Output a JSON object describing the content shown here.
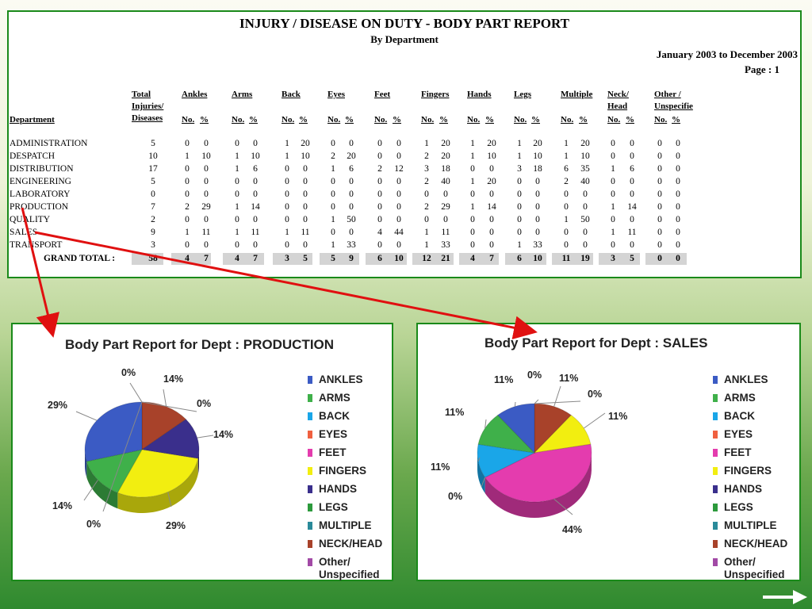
{
  "report": {
    "title": "INJURY / DISEASE ON DUTY - BODY PART REPORT",
    "subtitle": "By Department",
    "date_range": "January 2003 to December 2003",
    "page": "Page : 1",
    "dept_header": "Department",
    "total_header": [
      "Total",
      "Injuries/",
      "Diseases"
    ],
    "columns": [
      {
        "name": [
          "Ankles"
        ]
      },
      {
        "name": [
          "Arms"
        ]
      },
      {
        "name": [
          "Back"
        ]
      },
      {
        "name": [
          "Eyes"
        ]
      },
      {
        "name": [
          "Feet"
        ]
      },
      {
        "name": [
          "Fingers"
        ]
      },
      {
        "name": [
          "Hands"
        ]
      },
      {
        "name": [
          "Legs"
        ]
      },
      {
        "name": [
          "Multiple"
        ]
      },
      {
        "name": [
          "Neck/",
          "Head"
        ]
      },
      {
        "name": [
          "Other /",
          "Unspecifie"
        ]
      }
    ],
    "sub_no": "No.",
    "sub_pct": "%",
    "rows": [
      {
        "dept": "ADMINISTRATION",
        "total": "5",
        "cells": [
          "0",
          "0",
          "0",
          "0",
          "1",
          "20",
          "0",
          "0",
          "0",
          "0",
          "1",
          "20",
          "1",
          "20",
          "1",
          "20",
          "1",
          "20",
          "0",
          "0",
          "0",
          "0"
        ]
      },
      {
        "dept": "DESPATCH",
        "total": "10",
        "cells": [
          "1",
          "10",
          "1",
          "10",
          "1",
          "10",
          "2",
          "20",
          "0",
          "0",
          "2",
          "20",
          "1",
          "10",
          "1",
          "10",
          "1",
          "10",
          "0",
          "0",
          "0",
          "0"
        ]
      },
      {
        "dept": "DISTRIBUTION",
        "total": "17",
        "cells": [
          "0",
          "0",
          "1",
          "6",
          "0",
          "0",
          "1",
          "6",
          "2",
          "12",
          "3",
          "18",
          "0",
          "0",
          "3",
          "18",
          "6",
          "35",
          "1",
          "6",
          "0",
          "0"
        ]
      },
      {
        "dept": "ENGINEERING",
        "total": "5",
        "cells": [
          "0",
          "0",
          "0",
          "0",
          "0",
          "0",
          "0",
          "0",
          "0",
          "0",
          "2",
          "40",
          "1",
          "20",
          "0",
          "0",
          "2",
          "40",
          "0",
          "0",
          "0",
          "0"
        ]
      },
      {
        "dept": "LABORATORY",
        "total": "0",
        "cells": [
          "0",
          "0",
          "0",
          "0",
          "0",
          "0",
          "0",
          "0",
          "0",
          "0",
          "0",
          "0",
          "0",
          "0",
          "0",
          "0",
          "0",
          "0",
          "0",
          "0",
          "0",
          "0"
        ]
      },
      {
        "dept": "PRODUCTION",
        "total": "7",
        "cells": [
          "2",
          "29",
          "1",
          "14",
          "0",
          "0",
          "0",
          "0",
          "0",
          "0",
          "2",
          "29",
          "1",
          "14",
          "0",
          "0",
          "0",
          "0",
          "1",
          "14",
          "0",
          "0"
        ]
      },
      {
        "dept": "QUALITY",
        "total": "2",
        "cells": [
          "0",
          "0",
          "0",
          "0",
          "0",
          "0",
          "1",
          "50",
          "0",
          "0",
          "0",
          "0",
          "0",
          "0",
          "0",
          "0",
          "1",
          "50",
          "0",
          "0",
          "0",
          "0"
        ]
      },
      {
        "dept": "SALES",
        "total": "9",
        "cells": [
          "1",
          "11",
          "1",
          "11",
          "1",
          "11",
          "0",
          "0",
          "4",
          "44",
          "1",
          "11",
          "0",
          "0",
          "0",
          "0",
          "0",
          "0",
          "1",
          "11",
          "0",
          "0"
        ]
      },
      {
        "dept": "TRANSPORT",
        "total": "3",
        "cells": [
          "0",
          "0",
          "0",
          "0",
          "0",
          "0",
          "1",
          "33",
          "0",
          "0",
          "1",
          "33",
          "0",
          "0",
          "1",
          "33",
          "0",
          "0",
          "0",
          "0",
          "0",
          "0"
        ]
      }
    ],
    "grand_total": {
      "label": "GRAND TOTAL :",
      "total": "58",
      "cells": [
        "4",
        "7",
        "4",
        "7",
        "3",
        "5",
        "5",
        "9",
        "6",
        "10",
        "12",
        "21",
        "4",
        "7",
        "6",
        "10",
        "11",
        "19",
        "3",
        "5",
        "0",
        "0"
      ]
    }
  },
  "legend_items": [
    {
      "label": "ANKLES",
      "color": "#3b5bc4"
    },
    {
      "label": "ARMS",
      "color": "#3fb04a"
    },
    {
      "label": "BACK",
      "color": "#1aa6e8"
    },
    {
      "label": "EYES",
      "color": "#f06040"
    },
    {
      "label": "FEET",
      "color": "#e43cae"
    },
    {
      "label": "FINGERS",
      "color": "#f2ee10"
    },
    {
      "label": "HANDS",
      "color": "#3a2f8c"
    },
    {
      "label": "LEGS",
      "color": "#2c9a3c"
    },
    {
      "label": "MULTIPLE",
      "color": "#2a8a9a"
    },
    {
      "label": "NECK/HEAD",
      "color": "#a8422a"
    },
    {
      "label": "Other/ Unspecified",
      "color": "#a24aa6"
    }
  ],
  "chart_data": [
    {
      "type": "pie",
      "title": "Body Part Report for Dept : PRODUCTION",
      "labels": [
        "ANKLES",
        "ARMS",
        "BACK",
        "EYES",
        "FEET",
        "FINGERS",
        "HANDS",
        "LEGS",
        "MULTIPLE",
        "NECK/HEAD",
        "Other/ Unspecified"
      ],
      "values": [
        29,
        14,
        0,
        0,
        0,
        29,
        14,
        0,
        0,
        14,
        0
      ],
      "data_labels": [
        "29%",
        "14%",
        "0%",
        "0%",
        "0%",
        "29%",
        "14%",
        "0%",
        "0%",
        "14%",
        "0%"
      ]
    },
    {
      "type": "pie",
      "title": "Body Part Report for Dept : SALES",
      "labels": [
        "ANKLES",
        "ARMS",
        "BACK",
        "EYES",
        "FEET",
        "FINGERS",
        "HANDS",
        "LEGS",
        "MULTIPLE",
        "NECK/HEAD",
        "Other/ Unspecified"
      ],
      "values": [
        11,
        11,
        11,
        0,
        44,
        11,
        0,
        0,
        0,
        11,
        0
      ],
      "data_labels": [
        "11%",
        "11%",
        "11%",
        "0%",
        "44%",
        "11%",
        "0%",
        "0%",
        "0%",
        "11%",
        "0%"
      ]
    }
  ],
  "slide": {
    "next_icon": "right-arrow-icon"
  }
}
